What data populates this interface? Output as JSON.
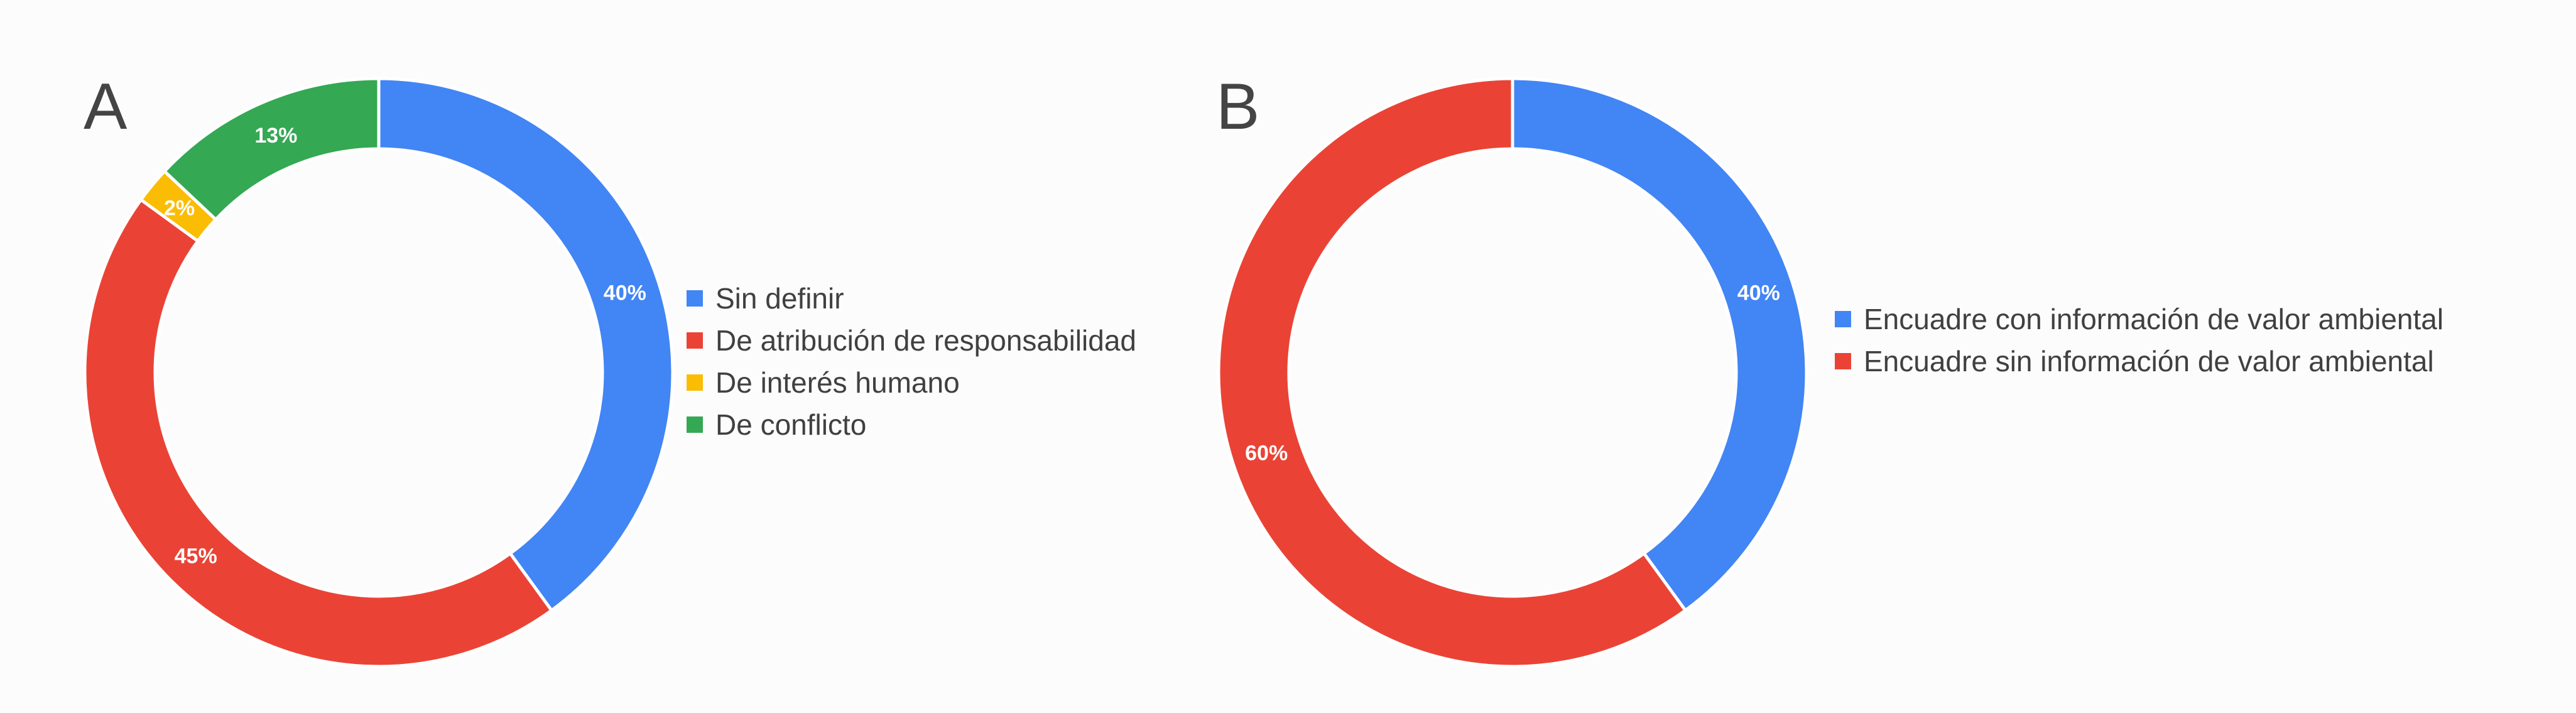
{
  "chart_data": [
    {
      "type": "pie",
      "donut": true,
      "panel_label": "A",
      "categories": [
        "Sin definir",
        "De atribución de responsabilidad",
        "De interés humano",
        "De conflicto"
      ],
      "values": [
        40,
        45,
        2,
        13
      ],
      "value_labels": [
        "40%",
        "45%",
        "2%",
        "13%"
      ],
      "colors": [
        "#4285f4",
        "#ea4335",
        "#fbbc04",
        "#34a853"
      ],
      "legend_position": "right"
    },
    {
      "type": "pie",
      "donut": true,
      "panel_label": "B",
      "categories": [
        "Encuadre con información de valor ambiental",
        "Encuadre sin información de valor ambiental"
      ],
      "values": [
        40,
        60
      ],
      "value_labels": [
        "40%",
        "60%"
      ],
      "colors": [
        "#4285f4",
        "#ea4335"
      ],
      "legend_position": "right"
    }
  ]
}
